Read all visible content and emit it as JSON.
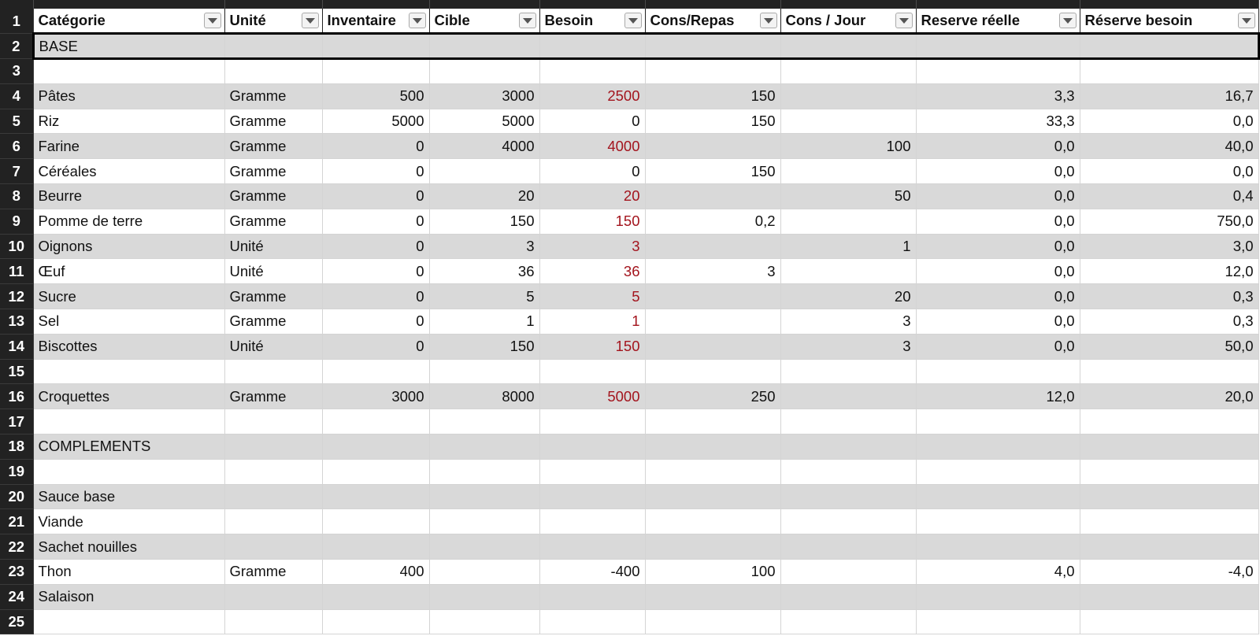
{
  "app": {
    "name": "Spreadsheet"
  },
  "columns": [
    {
      "label": "Catégorie",
      "align": "left"
    },
    {
      "label": "Unité",
      "align": "left"
    },
    {
      "label": "Inventaire",
      "align": "right"
    },
    {
      "label": "Cible",
      "align": "right"
    },
    {
      "label": "Besoin",
      "align": "right",
      "highlight_positive": true
    },
    {
      "label": "Cons/Repas",
      "align": "right"
    },
    {
      "label": "Cons / Jour",
      "align": "right"
    },
    {
      "label": "Reserve réelle",
      "align": "right"
    },
    {
      "label": "Réserve besoin",
      "align": "right"
    }
  ],
  "colors": {
    "header_bg": "#222222",
    "row_shade": "#d9d9d9",
    "negative_need": "#a3141d"
  },
  "icons": {
    "filter": "filter-dropdown-icon"
  },
  "rows": [
    {
      "n": "1",
      "header": true
    },
    {
      "n": "2",
      "cells": [
        "BASE",
        "",
        "",
        "",
        "",
        "",
        "",
        "",
        ""
      ],
      "selected": true
    },
    {
      "n": "3",
      "cells": [
        "",
        "",
        "",
        "",
        "",
        "",
        "",
        "",
        ""
      ]
    },
    {
      "n": "4",
      "cells": [
        "Pâtes",
        "Gramme",
        "500",
        "3000",
        "2500",
        "150",
        "",
        "3,3",
        "16,7"
      ]
    },
    {
      "n": "5",
      "cells": [
        "Riz",
        "Gramme",
        "5000",
        "5000",
        "0",
        "150",
        "",
        "33,3",
        "0,0"
      ]
    },
    {
      "n": "6",
      "cells": [
        "Farine",
        "Gramme",
        "0",
        "4000",
        "4000",
        "",
        "100",
        "0,0",
        "40,0"
      ]
    },
    {
      "n": "7",
      "cells": [
        "Céréales",
        "Gramme",
        "0",
        "",
        "0",
        "150",
        "",
        "0,0",
        "0,0"
      ]
    },
    {
      "n": "8",
      "cells": [
        "Beurre",
        "Gramme",
        "0",
        "20",
        "20",
        "",
        "50",
        "0,0",
        "0,4"
      ]
    },
    {
      "n": "9",
      "cells": [
        "Pomme de terre",
        "Gramme",
        "0",
        "150",
        "150",
        "0,2",
        "",
        "0,0",
        "750,0"
      ]
    },
    {
      "n": "10",
      "cells": [
        "Oignons",
        "Unité",
        "0",
        "3",
        "3",
        "",
        "1",
        "0,0",
        "3,0"
      ]
    },
    {
      "n": "11",
      "cells": [
        "Œuf",
        "Unité",
        "0",
        "36",
        "36",
        "3",
        "",
        "0,0",
        "12,0"
      ]
    },
    {
      "n": "12",
      "cells": [
        "Sucre",
        "Gramme",
        "0",
        "5",
        "5",
        "",
        "20",
        "0,0",
        "0,3"
      ]
    },
    {
      "n": "13",
      "cells": [
        "Sel",
        "Gramme",
        "0",
        "1",
        "1",
        "",
        "3",
        "0,0",
        "0,3"
      ]
    },
    {
      "n": "14",
      "cells": [
        "Biscottes",
        "Unité",
        "0",
        "150",
        "150",
        "",
        "3",
        "0,0",
        "50,0"
      ]
    },
    {
      "n": "15",
      "cells": [
        "",
        "",
        "",
        "",
        "",
        "",
        "",
        "",
        ""
      ]
    },
    {
      "n": "16",
      "cells": [
        "Croquettes",
        "Gramme",
        "3000",
        "8000",
        "5000",
        "250",
        "",
        "12,0",
        "20,0"
      ]
    },
    {
      "n": "17",
      "cells": [
        "",
        "",
        "",
        "",
        "",
        "",
        "",
        "",
        ""
      ]
    },
    {
      "n": "18",
      "cells": [
        "COMPLEMENTS",
        "",
        "",
        "",
        "",
        "",
        "",
        "",
        ""
      ]
    },
    {
      "n": "19",
      "cells": [
        "",
        "",
        "",
        "",
        "",
        "",
        "",
        "",
        ""
      ]
    },
    {
      "n": "20",
      "cells": [
        "Sauce base",
        "",
        "",
        "",
        "",
        "",
        "",
        "",
        ""
      ]
    },
    {
      "n": "21",
      "cells": [
        "Viande",
        "",
        "",
        "",
        "",
        "",
        "",
        "",
        ""
      ]
    },
    {
      "n": "22",
      "cells": [
        "Sachet nouilles",
        "",
        "",
        "",
        "",
        "",
        "",
        "",
        ""
      ]
    },
    {
      "n": "23",
      "cells": [
        "Thon",
        "Gramme",
        "400",
        "",
        "-400",
        "100",
        "",
        "4,0",
        "-4,0"
      ]
    },
    {
      "n": "24",
      "cells": [
        "Salaison",
        "",
        "",
        "",
        "",
        "",
        "",
        "",
        ""
      ]
    },
    {
      "n": "25",
      "cells": [
        "",
        "",
        "",
        "",
        "",
        "",
        "",
        "",
        ""
      ]
    }
  ]
}
